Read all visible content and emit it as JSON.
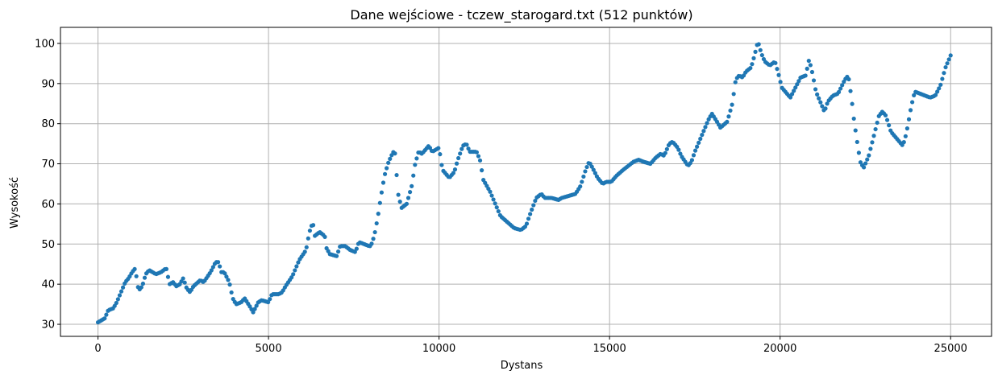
{
  "chart_data": {
    "type": "scatter",
    "title": "Dane wejściowe - tczew_starogard.txt (512 punktów)",
    "xlabel": "Dystans",
    "ylabel": "Wysokość",
    "xlim": [
      -1100,
      26200
    ],
    "ylim": [
      27,
      104
    ],
    "xticks": [
      0,
      5000,
      10000,
      15000,
      20000,
      25000
    ],
    "yticks": [
      30,
      40,
      50,
      60,
      70,
      80,
      90,
      100
    ],
    "grid": true,
    "point_color": "#1f77b4",
    "point_count": 512,
    "x_max": 25000,
    "profile": [
      [
        0,
        30.5
      ],
      [
        200,
        31.5
      ],
      [
        300,
        33.5
      ],
      [
        450,
        34
      ],
      [
        550,
        35.5
      ],
      [
        700,
        38.5
      ],
      [
        800,
        40.5
      ],
      [
        900,
        41.5
      ],
      [
        1000,
        43
      ],
      [
        1100,
        44
      ],
      [
        1150,
        40
      ],
      [
        1200,
        38.5
      ],
      [
        1300,
        39.5
      ],
      [
        1400,
        42.5
      ],
      [
        1500,
        43.5
      ],
      [
        1700,
        42.5
      ],
      [
        1850,
        43
      ],
      [
        2000,
        44
      ],
      [
        2100,
        40
      ],
      [
        2200,
        40.5
      ],
      [
        2300,
        39.5
      ],
      [
        2400,
        40
      ],
      [
        2500,
        41.5
      ],
      [
        2600,
        39
      ],
      [
        2700,
        38
      ],
      [
        2800,
        39.5
      ],
      [
        3000,
        41
      ],
      [
        3100,
        40.5
      ],
      [
        3300,
        43
      ],
      [
        3450,
        45.5
      ],
      [
        3550,
        45.5
      ],
      [
        3600,
        43
      ],
      [
        3700,
        43
      ],
      [
        3850,
        40.5
      ],
      [
        3950,
        36.5
      ],
      [
        4050,
        35
      ],
      [
        4200,
        35.5
      ],
      [
        4300,
        36.5
      ],
      [
        4450,
        34.5
      ],
      [
        4550,
        33
      ],
      [
        4700,
        35.5
      ],
      [
        4800,
        36
      ],
      [
        5000,
        35.5
      ],
      [
        5100,
        37.5
      ],
      [
        5300,
        37.5
      ],
      [
        5400,
        38
      ],
      [
        5500,
        39.5
      ],
      [
        5700,
        42
      ],
      [
        5900,
        46
      ],
      [
        6100,
        48.5
      ],
      [
        6200,
        53
      ],
      [
        6300,
        55.5
      ],
      [
        6350,
        52
      ],
      [
        6500,
        53
      ],
      [
        6650,
        52
      ],
      [
        6700,
        49
      ],
      [
        6800,
        47.5
      ],
      [
        7000,
        47
      ],
      [
        7100,
        49.5
      ],
      [
        7250,
        49.5
      ],
      [
        7400,
        48.5
      ],
      [
        7550,
        48
      ],
      [
        7650,
        50.5
      ],
      [
        7800,
        50
      ],
      [
        7950,
        49.5
      ],
      [
        8000,
        49.5
      ],
      [
        8100,
        52
      ],
      [
        8200,
        56.5
      ],
      [
        8300,
        62
      ],
      [
        8400,
        67
      ],
      [
        8500,
        70
      ],
      [
        8600,
        72
      ],
      [
        8700,
        73.5
      ],
      [
        8750,
        68
      ],
      [
        8800,
        62.5
      ],
      [
        8900,
        59
      ],
      [
        9050,
        60
      ],
      [
        9200,
        64.5
      ],
      [
        9300,
        70
      ],
      [
        9400,
        73
      ],
      [
        9500,
        72.5
      ],
      [
        9700,
        74.5
      ],
      [
        9800,
        73
      ],
      [
        10000,
        74
      ],
      [
        10100,
        68.5
      ],
      [
        10300,
        66.5
      ],
      [
        10450,
        68
      ],
      [
        10550,
        71
      ],
      [
        10700,
        74.5
      ],
      [
        10800,
        75
      ],
      [
        10900,
        73
      ],
      [
        11100,
        73
      ],
      [
        11200,
        71
      ],
      [
        11300,
        66
      ],
      [
        11500,
        63
      ],
      [
        11650,
        60
      ],
      [
        11800,
        57
      ],
      [
        12000,
        55.5
      ],
      [
        12200,
        54
      ],
      [
        12400,
        53.5
      ],
      [
        12550,
        54.5
      ],
      [
        12650,
        57
      ],
      [
        12850,
        61.5
      ],
      [
        13000,
        62.5
      ],
      [
        13100,
        61.5
      ],
      [
        13300,
        61.5
      ],
      [
        13500,
        61
      ],
      [
        13600,
        61.5
      ],
      [
        13800,
        62
      ],
      [
        14000,
        62.5
      ],
      [
        14150,
        64.5
      ],
      [
        14300,
        68.5
      ],
      [
        14400,
        70.5
      ],
      [
        14500,
        69
      ],
      [
        14650,
        66.5
      ],
      [
        14800,
        65
      ],
      [
        14900,
        65.5
      ],
      [
        15050,
        65.5
      ],
      [
        15200,
        67
      ],
      [
        15400,
        68.5
      ],
      [
        15550,
        69.5
      ],
      [
        15700,
        70.5
      ],
      [
        15850,
        71
      ],
      [
        16000,
        70.5
      ],
      [
        16200,
        70
      ],
      [
        16350,
        71.5
      ],
      [
        16500,
        72.5
      ],
      [
        16600,
        72
      ],
      [
        16750,
        75
      ],
      [
        16850,
        75.5
      ],
      [
        17000,
        74
      ],
      [
        17100,
        72
      ],
      [
        17300,
        69.5
      ],
      [
        17400,
        70.5
      ],
      [
        17500,
        73
      ],
      [
        17700,
        77
      ],
      [
        17900,
        81
      ],
      [
        18000,
        82.5
      ],
      [
        18150,
        80.5
      ],
      [
        18250,
        79
      ],
      [
        18450,
        80.5
      ],
      [
        18600,
        85
      ],
      [
        18700,
        91
      ],
      [
        18800,
        92
      ],
      [
        18900,
        91.5
      ],
      [
        19000,
        93
      ],
      [
        19150,
        94
      ],
      [
        19250,
        97
      ],
      [
        19350,
        100.5
      ],
      [
        19450,
        97.5
      ],
      [
        19550,
        95.5
      ],
      [
        19700,
        94.5
      ],
      [
        19850,
        95.5
      ],
      [
        19950,
        92.5
      ],
      [
        20050,
        89
      ],
      [
        20150,
        88
      ],
      [
        20300,
        86.5
      ],
      [
        20450,
        89
      ],
      [
        20600,
        91.5
      ],
      [
        20750,
        92
      ],
      [
        20850,
        96
      ],
      [
        20950,
        92.5
      ],
      [
        21050,
        88
      ],
      [
        21200,
        85
      ],
      [
        21300,
        83
      ],
      [
        21400,
        85.5
      ],
      [
        21550,
        87
      ],
      [
        21700,
        87.5
      ],
      [
        21900,
        91
      ],
      [
        22000,
        92
      ],
      [
        22100,
        86
      ],
      [
        22150,
        82
      ],
      [
        22250,
        76
      ],
      [
        22350,
        70.5
      ],
      [
        22450,
        69
      ],
      [
        22600,
        72
      ],
      [
        22750,
        77
      ],
      [
        22900,
        82
      ],
      [
        23000,
        83
      ],
      [
        23100,
        82
      ],
      [
        23250,
        78
      ],
      [
        23450,
        76
      ],
      [
        23600,
        74.5
      ],
      [
        23700,
        77.5
      ],
      [
        23850,
        84.5
      ],
      [
        23950,
        88
      ],
      [
        24100,
        87.5
      ],
      [
        24250,
        87
      ],
      [
        24400,
        86.5
      ],
      [
        24550,
        87
      ],
      [
        24700,
        89.5
      ],
      [
        24850,
        94
      ],
      [
        25000,
        97
      ]
    ]
  }
}
